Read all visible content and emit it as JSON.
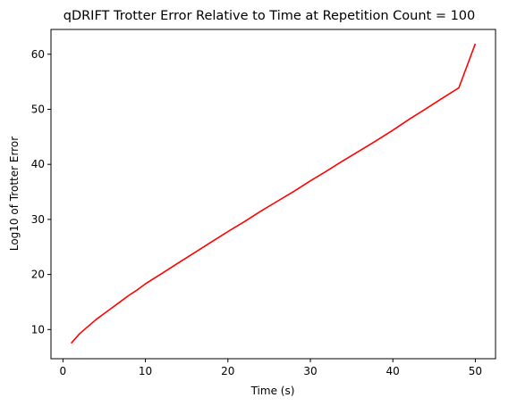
{
  "chart_data": {
    "type": "line",
    "title": "qDRIFT Trotter Error Relative to Time at Repetition Count = 100",
    "xlabel": "Time (s)",
    "ylabel": "Log10 of Trotter Error",
    "xlim": [
      -1.45,
      52.45
    ],
    "ylim": [
      4.7,
      64.5
    ],
    "xticks": [
      0,
      10,
      20,
      30,
      40,
      50
    ],
    "yticks": [
      10,
      20,
      30,
      40,
      50,
      60
    ],
    "xtick_labels": [
      "0",
      "10",
      "20",
      "30",
      "40",
      "50"
    ],
    "ytick_labels": [
      "10",
      "20",
      "30",
      "40",
      "50",
      "60"
    ],
    "grid": false,
    "legend": "none",
    "series": [
      {
        "color": "#ff0000",
        "x": [
          1,
          2,
          3,
          4,
          5,
          6,
          7,
          8,
          9,
          10,
          12,
          14,
          16,
          18,
          20,
          22,
          24,
          26,
          28,
          30,
          32,
          34,
          36,
          38,
          40,
          42,
          44,
          46,
          48,
          50
        ],
        "y": [
          7.5,
          9.2,
          10.5,
          11.8,
          12.9,
          14.0,
          15.1,
          16.2,
          17.2,
          18.3,
          20.2,
          22.1,
          24.0,
          25.9,
          27.8,
          29.6,
          31.5,
          33.3,
          35.1,
          37.0,
          38.8,
          40.7,
          42.5,
          44.3,
          46.2,
          48.2,
          50.1,
          52.0,
          53.9,
          61.9
        ]
      }
    ]
  }
}
